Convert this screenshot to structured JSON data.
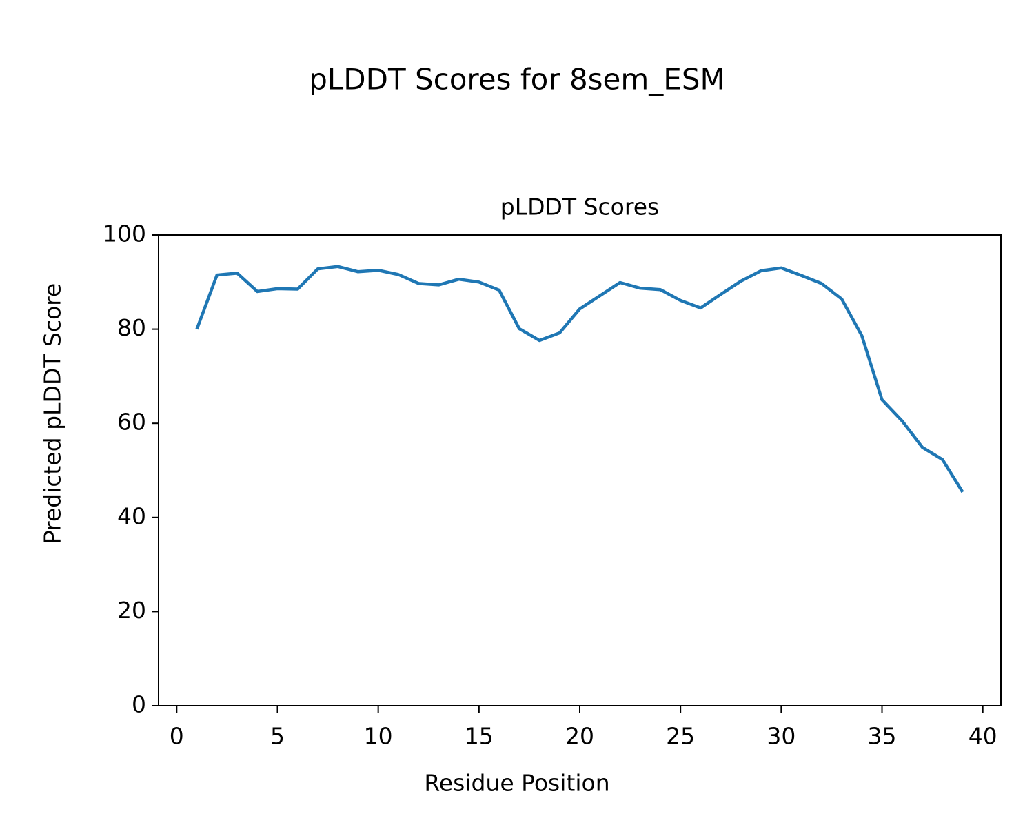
{
  "chart_data": {
    "type": "line",
    "title": "pLDDT Scores for 8sem_ESM",
    "subtitle": "pLDDT Scores",
    "x_label": "Residue Position",
    "y_label": "Predicted pLDDT Score",
    "x": [
      1,
      2,
      3,
      4,
      5,
      6,
      7,
      8,
      9,
      10,
      11,
      12,
      13,
      14,
      15,
      16,
      17,
      18,
      19,
      20,
      21,
      22,
      23,
      24,
      25,
      26,
      27,
      28,
      29,
      30,
      31,
      32,
      33,
      34,
      35,
      36,
      37,
      38,
      39
    ],
    "series": [
      {
        "name": "pLDDT",
        "color": "#1f77b4",
        "values": [
          80,
          91.5,
          91.9,
          88.0,
          88.6,
          88.5,
          92.8,
          93.3,
          92.2,
          92.5,
          91.6,
          89.7,
          89.4,
          90.6,
          90.0,
          88.3,
          80.1,
          77.6,
          79.2,
          84.3,
          87.1,
          89.9,
          88.7,
          88.4,
          86.1,
          84.5,
          87.4,
          90.2,
          92.4,
          93.0,
          91.4,
          89.7,
          86.4,
          78.6,
          65.0,
          60.5,
          54.9,
          52.3,
          45.4
        ]
      }
    ],
    "xlim": [
      -0.9,
      40.9
    ],
    "xticks": [
      0,
      5,
      10,
      15,
      20,
      25,
      30,
      35,
      40
    ],
    "ylim": [
      0,
      100
    ],
    "yticks": [
      0,
      20,
      40,
      60,
      80,
      100
    ],
    "grid": false
  }
}
